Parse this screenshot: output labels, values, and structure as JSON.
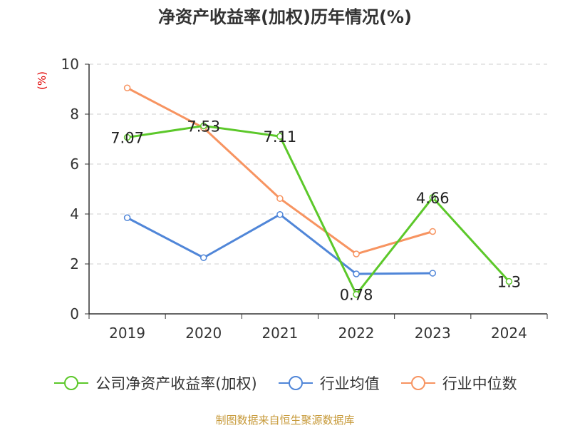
{
  "chart_data": {
    "type": "line",
    "title": "净资产收益率(加权)历年情况(%)",
    "unit": "(%)",
    "categories": [
      "2019",
      "2020",
      "2021",
      "2022",
      "2023",
      "2024"
    ],
    "ylim": [
      0,
      10
    ],
    "yticks": [
      0,
      2,
      4,
      6,
      8,
      10
    ],
    "grid": true,
    "legend_position": "bottom",
    "series": [
      {
        "name": "公司净资产收益率(加权)",
        "color": "#5cc82a",
        "values": [
          7.07,
          7.53,
          7.11,
          0.78,
          4.66,
          1.3
        ],
        "labels": [
          "7.07",
          "7.53",
          "7.11",
          "0.78",
          "4.66",
          "1.3"
        ]
      },
      {
        "name": "行业均值",
        "color": "#5086d8",
        "values": [
          3.85,
          2.25,
          3.98,
          1.6,
          1.63,
          null
        ]
      },
      {
        "name": "行业中位数",
        "color": "#f79461",
        "values": [
          9.05,
          7.45,
          4.62,
          2.4,
          3.3,
          null
        ]
      }
    ]
  },
  "footer": {
    "source": "制图数据来自恒生聚源数据库"
  }
}
